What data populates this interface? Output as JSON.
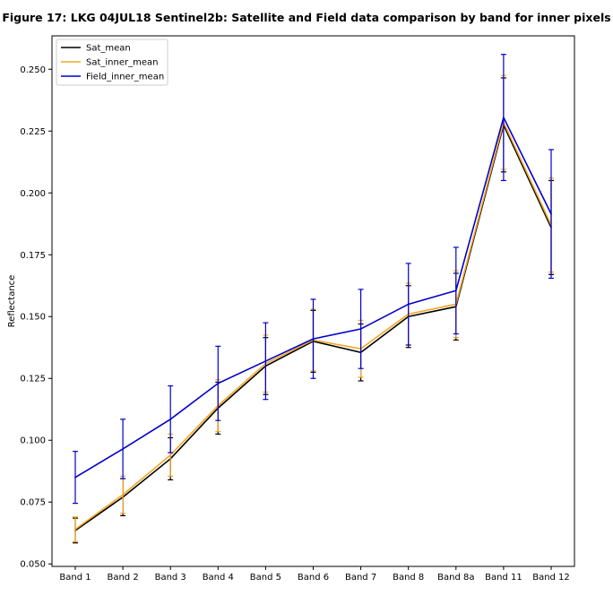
{
  "chart_data": {
    "type": "line",
    "title": "Figure 17: LKG 04JUL18  Sentinel2b: Satellite and Field data comparison by band for inner pixels",
    "xlabel": "",
    "ylabel": "Reflectance",
    "categories": [
      "Band 1",
      "Band 2",
      "Band 3",
      "Band 4",
      "Band 5",
      "Band 6",
      "Band 7",
      "Band 8",
      "Band 8a",
      "Band 11",
      "Band 12"
    ],
    "ylim": [
      0.049,
      0.2635
    ],
    "yticks": [
      0.05,
      0.075,
      0.1,
      0.125,
      0.15,
      0.175,
      0.2,
      0.225,
      0.25
    ],
    "ytick_labels": [
      "0.050",
      "0.075",
      "0.100",
      "0.125",
      "0.150",
      "0.175",
      "0.200",
      "0.225",
      "0.250"
    ],
    "grid": false,
    "legend_position": "top-left",
    "series": [
      {
        "name": "Sat_mean",
        "color": "#000000",
        "values": [
          0.0635,
          0.077,
          0.0925,
          0.113,
          0.13,
          0.14,
          0.1355,
          0.15,
          0.154,
          0.2275,
          0.186
        ],
        "err": [
          0.005,
          0.0075,
          0.0085,
          0.0105,
          0.0115,
          0.0125,
          0.0115,
          0.0125,
          0.0135,
          0.019,
          0.019
        ]
      },
      {
        "name": "Sat_inner_mean",
        "color": "#f5a623",
        "values": [
          0.064,
          0.078,
          0.094,
          0.114,
          0.131,
          0.1405,
          0.137,
          0.151,
          0.155,
          0.2285,
          0.187
        ],
        "err": [
          0.005,
          0.0075,
          0.0085,
          0.0105,
          0.0115,
          0.0125,
          0.0115,
          0.0125,
          0.0135,
          0.019,
          0.019
        ]
      },
      {
        "name": "Field_inner_mean",
        "color": "#0000cc",
        "values": [
          0.085,
          0.0965,
          0.1085,
          0.123,
          0.132,
          0.141,
          0.145,
          0.155,
          0.1605,
          0.2305,
          0.1915
        ],
        "err": [
          0.0105,
          0.012,
          0.0135,
          0.015,
          0.0155,
          0.016,
          0.016,
          0.0165,
          0.0175,
          0.0255,
          0.026
        ]
      }
    ]
  }
}
